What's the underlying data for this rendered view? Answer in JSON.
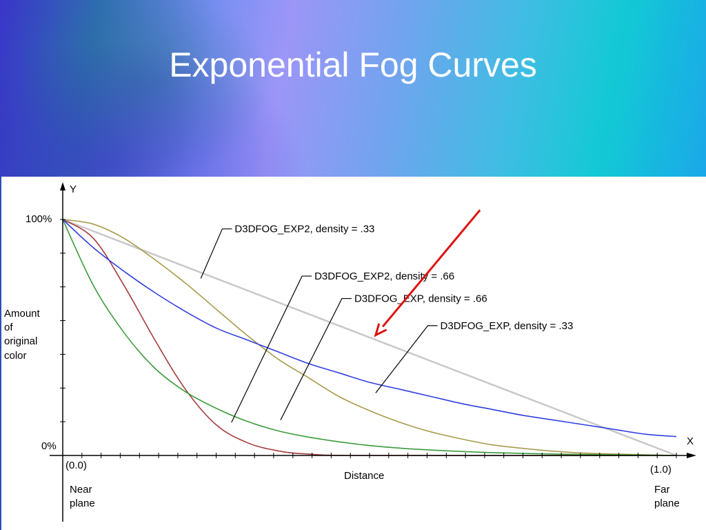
{
  "slide": {
    "title": "Exponential Fog Curves"
  },
  "chart_data": {
    "type": "line",
    "axes": {
      "x_name": "X",
      "y_name": "Y",
      "xlabel": "Distance",
      "ylabel": [
        "Amount",
        "of",
        "original",
        "color"
      ],
      "xlim": [
        0,
        1
      ],
      "ylim": [
        0,
        1
      ],
      "y_ticks": [
        "100%",
        "0%"
      ],
      "x_start_label": "(0.0)",
      "x_end_label": "(1.0)",
      "near_label": [
        "Near",
        "plane"
      ],
      "far_label": [
        "Far",
        "plane"
      ],
      "x_tick_count": 32,
      "y_tick_count": 7,
      "grid": false
    },
    "series": [
      {
        "name": "D3DFOG_EXP2, density = .33",
        "formula": "exp2",
        "color": "#a89a4a",
        "points": [
          {
            "x": 0.0,
            "y": 1.0
          },
          {
            "x": 0.05,
            "y": 0.98
          },
          {
            "x": 0.1,
            "y": 0.92
          },
          {
            "x": 0.15,
            "y": 0.83
          },
          {
            "x": 0.2,
            "y": 0.73
          },
          {
            "x": 0.25,
            "y": 0.62
          },
          {
            "x": 0.3,
            "y": 0.51
          },
          {
            "x": 0.35,
            "y": 0.41
          },
          {
            "x": 0.4,
            "y": 0.33
          },
          {
            "x": 0.45,
            "y": 0.25
          },
          {
            "x": 0.5,
            "y": 0.19
          },
          {
            "x": 0.55,
            "y": 0.14
          },
          {
            "x": 0.6,
            "y": 0.1
          },
          {
            "x": 0.65,
            "y": 0.07
          },
          {
            "x": 0.7,
            "y": 0.045
          },
          {
            "x": 0.75,
            "y": 0.03
          },
          {
            "x": 0.8,
            "y": 0.018
          },
          {
            "x": 0.85,
            "y": 0.01
          },
          {
            "x": 0.9,
            "y": 0.006
          },
          {
            "x": 1.0,
            "y": 0.0
          }
        ]
      },
      {
        "name": "D3DFOG_EXP2, density = .66",
        "formula": "exp2",
        "color": "#a43a3a",
        "points": [
          {
            "x": 0.0,
            "y": 1.0
          },
          {
            "x": 0.05,
            "y": 0.92
          },
          {
            "x": 0.1,
            "y": 0.72
          },
          {
            "x": 0.15,
            "y": 0.49
          },
          {
            "x": 0.2,
            "y": 0.28
          },
          {
            "x": 0.25,
            "y": 0.13
          },
          {
            "x": 0.3,
            "y": 0.055
          },
          {
            "x": 0.35,
            "y": 0.02
          },
          {
            "x": 0.4,
            "y": 0.006
          },
          {
            "x": 0.5,
            "y": 0.0
          },
          {
            "x": 1.0,
            "y": 0.0
          }
        ]
      },
      {
        "name": "D3DFOG_EXP, density = .66",
        "formula": "exp",
        "color": "#3a9a3a",
        "points": [
          {
            "x": 0.0,
            "y": 1.0
          },
          {
            "x": 0.05,
            "y": 0.72
          },
          {
            "x": 0.1,
            "y": 0.52
          },
          {
            "x": 0.15,
            "y": 0.37
          },
          {
            "x": 0.2,
            "y": 0.27
          },
          {
            "x": 0.25,
            "y": 0.2
          },
          {
            "x": 0.3,
            "y": 0.145
          },
          {
            "x": 0.35,
            "y": 0.105
          },
          {
            "x": 0.4,
            "y": 0.078
          },
          {
            "x": 0.45,
            "y": 0.058
          },
          {
            "x": 0.5,
            "y": 0.042
          },
          {
            "x": 0.55,
            "y": 0.031
          },
          {
            "x": 0.6,
            "y": 0.023
          },
          {
            "x": 0.65,
            "y": 0.017
          },
          {
            "x": 0.7,
            "y": 0.012
          },
          {
            "x": 0.8,
            "y": 0.006
          },
          {
            "x": 0.9,
            "y": 0.003
          },
          {
            "x": 1.0,
            "y": 0.0
          }
        ]
      },
      {
        "name": "D3DFOG_EXP, density = .33",
        "formula": "exp",
        "color": "#2f3fe0",
        "points": [
          {
            "x": 0.0,
            "y": 1.0
          },
          {
            "x": 0.05,
            "y": 0.88
          },
          {
            "x": 0.1,
            "y": 0.78
          },
          {
            "x": 0.15,
            "y": 0.69
          },
          {
            "x": 0.2,
            "y": 0.61
          },
          {
            "x": 0.25,
            "y": 0.54
          },
          {
            "x": 0.3,
            "y": 0.49
          },
          {
            "x": 0.35,
            "y": 0.44
          },
          {
            "x": 0.4,
            "y": 0.39
          },
          {
            "x": 0.45,
            "y": 0.35
          },
          {
            "x": 0.5,
            "y": 0.31
          },
          {
            "x": 0.55,
            "y": 0.28
          },
          {
            "x": 0.6,
            "y": 0.25
          },
          {
            "x": 0.65,
            "y": 0.22
          },
          {
            "x": 0.7,
            "y": 0.195
          },
          {
            "x": 0.75,
            "y": 0.17
          },
          {
            "x": 0.8,
            "y": 0.15
          },
          {
            "x": 0.85,
            "y": 0.13
          },
          {
            "x": 0.9,
            "y": 0.11
          },
          {
            "x": 0.95,
            "y": 0.09
          },
          {
            "x": 1.0,
            "y": 0.08
          }
        ]
      }
    ],
    "overlay_line": {
      "description": "linear reference",
      "color": "#c8c8c8",
      "from": {
        "x": 0.0,
        "y": 1.0
      },
      "to": {
        "x": 1.0,
        "y": 0.0
      }
    },
    "annotation_arrow": {
      "color": "#e01010",
      "from": {
        "x": 0.68,
        "y": 1.04
      },
      "to": {
        "x": 0.51,
        "y": 0.51
      }
    },
    "callouts": [
      {
        "series": 0,
        "text": "D3DFOG_EXP2, density = .33",
        "anchor": {
          "x": 0.225,
          "y": 0.75
        },
        "elbow": {
          "x": 0.26,
          "y": 0.96
        }
      },
      {
        "series": 1,
        "text": "D3DFOG_EXP2, density = .66",
        "anchor": {
          "x": 0.275,
          "y": 0.14
        },
        "elbow": {
          "x": 0.39,
          "y": 0.76
        }
      },
      {
        "series": 2,
        "text": "D3DFOG_EXP, density = .66",
        "anchor": {
          "x": 0.355,
          "y": 0.15
        },
        "elbow": {
          "x": 0.455,
          "y": 0.665
        }
      },
      {
        "series": 3,
        "text": "D3DFOG_EXP, density = .33",
        "anchor": {
          "x": 0.51,
          "y": 0.265
        },
        "elbow": {
          "x": 0.595,
          "y": 0.55
        }
      }
    ]
  }
}
